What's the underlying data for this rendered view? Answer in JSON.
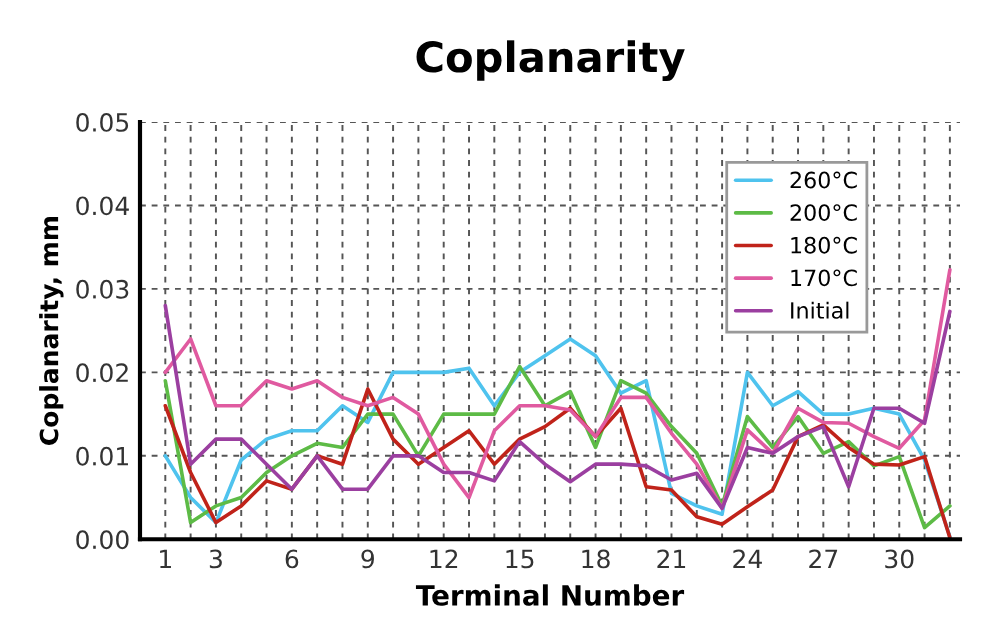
{
  "chart_data": {
    "type": "line",
    "title": "Coplanarity",
    "xlabel": "Terminal Number",
    "ylabel": "Coplanarity, mm",
    "x": [
      1,
      2,
      3,
      4,
      5,
      6,
      7,
      8,
      9,
      10,
      11,
      12,
      13,
      14,
      15,
      16,
      17,
      18,
      19,
      20,
      21,
      22,
      23,
      24,
      25,
      26,
      27,
      28,
      29,
      30,
      31,
      32
    ],
    "series": [
      {
        "name": "260°C",
        "color": "#4fc3ee",
        "values": [
          0.01,
          0.005,
          0.002,
          0.0095,
          0.012,
          0.013,
          0.013,
          0.016,
          0.014,
          0.02,
          0.02,
          0.02,
          0.0205,
          0.016,
          0.02,
          0.022,
          0.024,
          0.022,
          0.0175,
          0.019,
          0.0055,
          0.004,
          0.003,
          0.02,
          0.016,
          0.0177,
          0.015,
          0.015,
          0.0157,
          0.015,
          0.0095,
          0.0003
        ]
      },
      {
        "name": "200°C",
        "color": "#5dbb46",
        "values": [
          0.019,
          0.002,
          0.004,
          0.005,
          0.008,
          0.01,
          0.0115,
          0.011,
          0.015,
          0.015,
          0.01,
          0.015,
          0.015,
          0.015,
          0.0207,
          0.016,
          0.0177,
          0.011,
          0.019,
          0.0175,
          0.0135,
          0.0103,
          0.004,
          0.0147,
          0.011,
          0.0147,
          0.0103,
          0.0117,
          0.0088,
          0.0099,
          0.0014,
          0.004
        ]
      },
      {
        "name": "180°C",
        "color": "#c0231a",
        "values": [
          0.016,
          0.008,
          0.002,
          0.004,
          0.007,
          0.006,
          0.01,
          0.009,
          0.018,
          0.012,
          0.009,
          0.011,
          0.013,
          0.009,
          0.012,
          0.0135,
          0.0157,
          0.0123,
          0.0157,
          0.0063,
          0.0059,
          0.0027,
          0.0018,
          0.0039,
          0.0059,
          0.0123,
          0.0137,
          0.011,
          0.009,
          0.0089,
          0.0099,
          0.0002
        ]
      },
      {
        "name": "170°C",
        "color": "#e05aa0",
        "values": [
          0.02,
          0.024,
          0.016,
          0.016,
          0.019,
          0.018,
          0.019,
          0.017,
          0.016,
          0.017,
          0.015,
          0.009,
          0.005,
          0.013,
          0.016,
          0.016,
          0.0155,
          0.0123,
          0.017,
          0.017,
          0.0127,
          0.009,
          0.0037,
          0.0131,
          0.0103,
          0.0157,
          0.014,
          0.0139,
          0.0123,
          0.0109,
          0.0143,
          0.0323
        ]
      },
      {
        "name": "Initial",
        "color": "#9b3fa0",
        "values": [
          0.028,
          0.009,
          0.012,
          0.012,
          0.009,
          0.006,
          0.01,
          0.006,
          0.006,
          0.01,
          0.01,
          0.008,
          0.008,
          0.007,
          0.0117,
          0.009,
          0.0069,
          0.009,
          0.009,
          0.0088,
          0.0071,
          0.0079,
          0.0037,
          0.011,
          0.0103,
          0.0123,
          0.0135,
          0.0063,
          0.0157,
          0.0157,
          0.0139,
          0.0273
        ]
      }
    ],
    "xlim": [
      0,
      32.4
    ],
    "xticks": [
      {
        "value": 1,
        "label": "1"
      },
      {
        "value": 2,
        "label": null
      },
      {
        "value": 3,
        "label": "3"
      },
      {
        "value": 4,
        "label": null
      },
      {
        "value": 5,
        "label": null
      },
      {
        "value": 6,
        "label": "6"
      },
      {
        "value": 7,
        "label": null
      },
      {
        "value": 8,
        "label": null
      },
      {
        "value": 9,
        "label": "9"
      },
      {
        "value": 10,
        "label": null
      },
      {
        "value": 11,
        "label": null
      },
      {
        "value": 12,
        "label": "12"
      },
      {
        "value": 13,
        "label": null
      },
      {
        "value": 14,
        "label": null
      },
      {
        "value": 15,
        "label": "15"
      },
      {
        "value": 16,
        "label": null
      },
      {
        "value": 17,
        "label": null
      },
      {
        "value": 18,
        "label": "18"
      },
      {
        "value": 19,
        "label": null
      },
      {
        "value": 20,
        "label": null
      },
      {
        "value": 21,
        "label": "21"
      },
      {
        "value": 22,
        "label": null
      },
      {
        "value": 23,
        "label": null
      },
      {
        "value": 24,
        "label": "24"
      },
      {
        "value": 25,
        "label": null
      },
      {
        "value": 26,
        "label": null
      },
      {
        "value": 27,
        "label": "27"
      },
      {
        "value": 28,
        "label": null
      },
      {
        "value": 29,
        "label": null
      },
      {
        "value": 30,
        "label": "30"
      },
      {
        "value": 31,
        "label": null
      },
      {
        "value": 32,
        "label": null
      }
    ],
    "ylim": [
      0,
      0.05
    ],
    "yticks": [
      {
        "value": 0,
        "label": "0.00"
      },
      {
        "value": 0.01,
        "label": "0.01"
      },
      {
        "value": 0.02,
        "label": "0.02"
      },
      {
        "value": 0.03,
        "label": "0.03"
      },
      {
        "value": 0.04,
        "label": "0.04"
      },
      {
        "value": 0.05,
        "label": "0.05"
      }
    ],
    "grid": true,
    "legend": "top right",
    "marker": "none",
    "line_style": "solid"
  }
}
